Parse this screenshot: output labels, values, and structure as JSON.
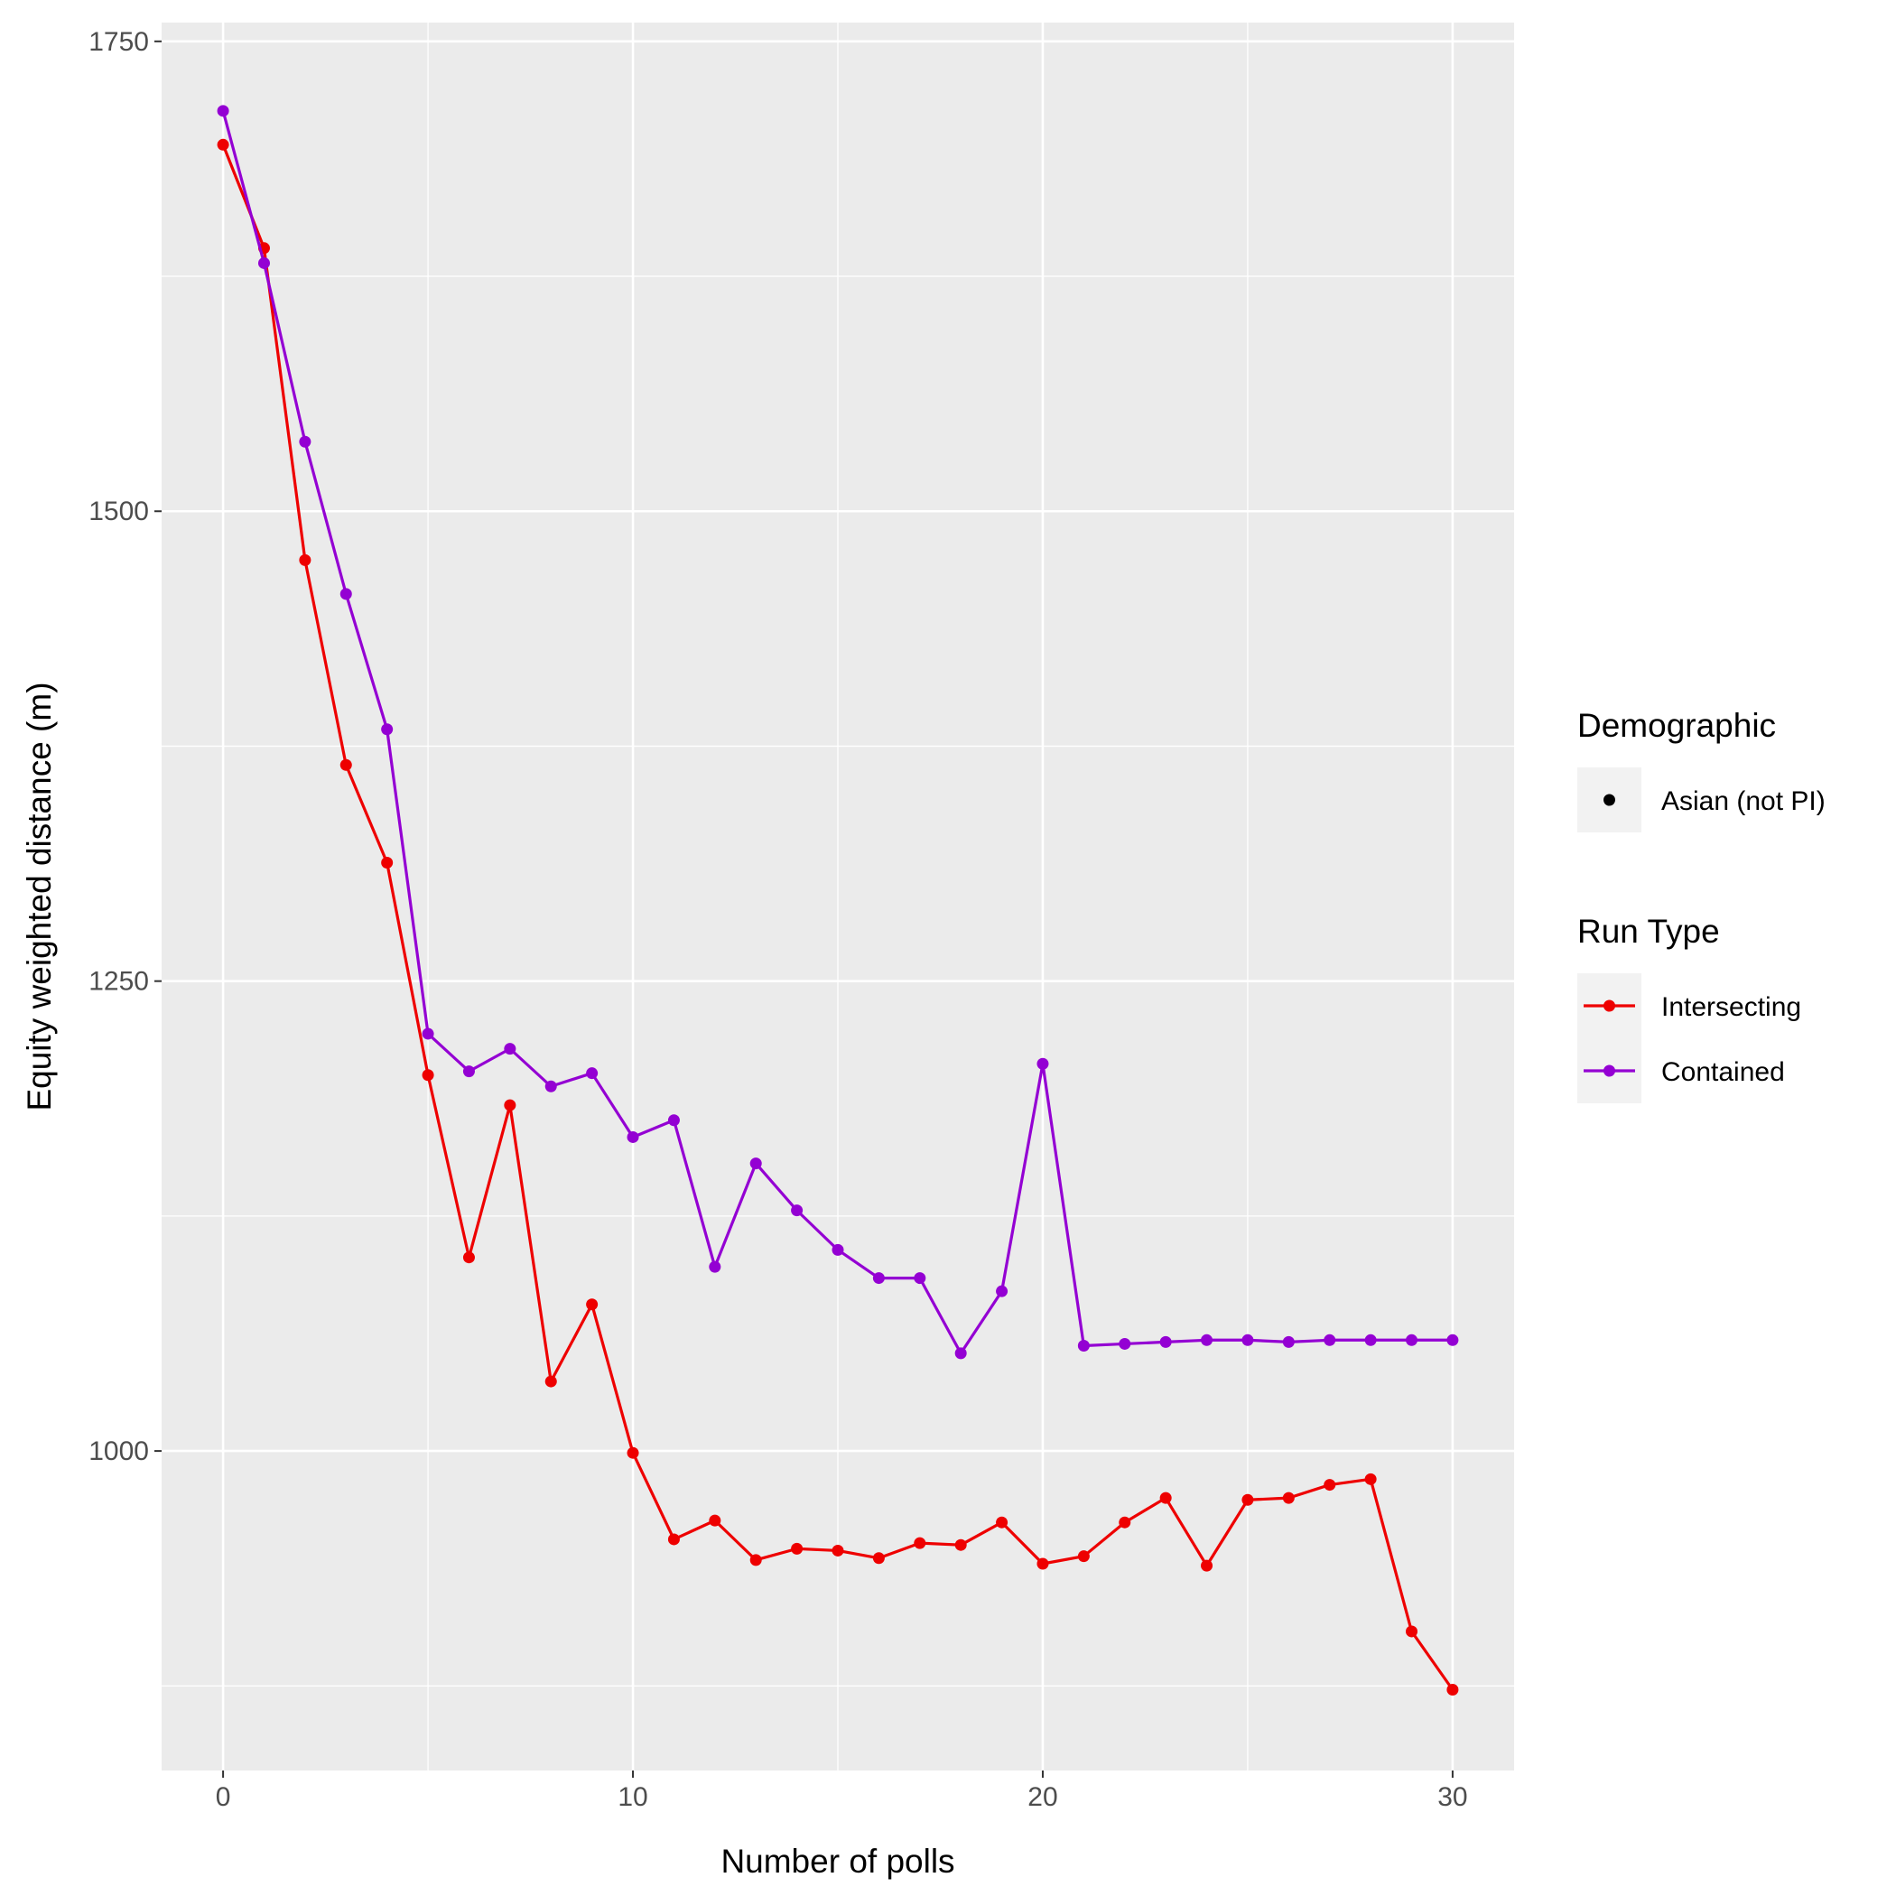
{
  "chart_data": {
    "type": "line",
    "xlabel": "Number of polls",
    "ylabel": "Equity weighted distance (m)",
    "xlim": [
      -1.5,
      31.5
    ],
    "ylim": [
      830,
      1760
    ],
    "x_ticks": [
      0,
      10,
      20,
      30
    ],
    "y_ticks": [
      1000,
      1250,
      1500,
      1750
    ],
    "grid": true,
    "legend_position": "right",
    "x": [
      0,
      1,
      2,
      3,
      4,
      5,
      6,
      7,
      8,
      9,
      10,
      11,
      12,
      13,
      14,
      15,
      16,
      17,
      18,
      19,
      20,
      21,
      22,
      23,
      24,
      25,
      26,
      27,
      28,
      29,
      30
    ],
    "series": [
      {
        "name": "Intersecting",
        "color": "#ee0000",
        "values": [
          1695,
          1640,
          1474,
          1365,
          1313,
          1200,
          1103,
          1184,
          1037,
          1078,
          999,
          953,
          963,
          942,
          948,
          947,
          943,
          951,
          950,
          962,
          940,
          944,
          962,
          975,
          939,
          974,
          975,
          982,
          985,
          904,
          873
        ]
      },
      {
        "name": "Contained",
        "color": "#9400d3",
        "values": [
          1713,
          1632,
          1537,
          1456,
          1384,
          1222,
          1202,
          1214,
          1194,
          1201,
          1167,
          1176,
          1098,
          1153,
          1128,
          1107,
          1092,
          1092,
          1052,
          1085,
          1206,
          1056,
          1057,
          1058,
          1059,
          1059,
          1058,
          1059,
          1059,
          1059,
          1059
        ]
      }
    ],
    "legends": [
      {
        "title": "Demographic",
        "entries": [
          {
            "label": "Asian (not PI)",
            "color": "#000000",
            "shape": "point"
          }
        ]
      },
      {
        "title": "Run Type",
        "entries": [
          {
            "label": "Intersecting",
            "color": "#ee0000",
            "shape": "line-point"
          },
          {
            "label": "Contained",
            "color": "#9400d3",
            "shape": "line-point"
          }
        ]
      }
    ]
  }
}
